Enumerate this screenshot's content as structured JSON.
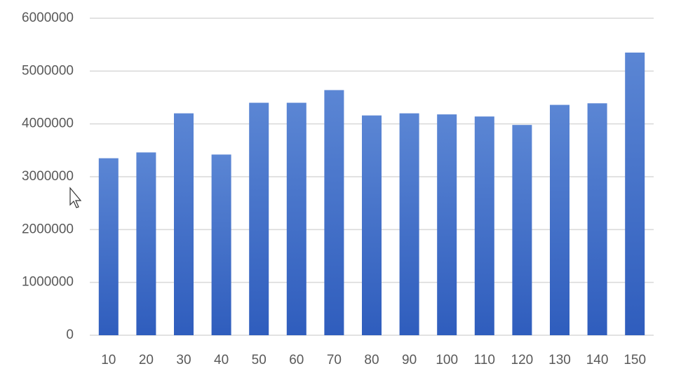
{
  "chart_data": {
    "type": "bar",
    "categories": [
      "10",
      "20",
      "30",
      "40",
      "50",
      "60",
      "70",
      "80",
      "90",
      "100",
      "110",
      "120",
      "130",
      "140",
      "150"
    ],
    "values": [
      3350000,
      3460000,
      4200000,
      3420000,
      4400000,
      4400000,
      4640000,
      4160000,
      4200000,
      4180000,
      4140000,
      3980000,
      4360000,
      4390000,
      5350000
    ],
    "color": "#4472c4",
    "ylim": [
      0,
      6000000
    ],
    "yticks": [
      0,
      1000000,
      2000000,
      3000000,
      4000000,
      5000000,
      6000000
    ],
    "grid": true
  }
}
